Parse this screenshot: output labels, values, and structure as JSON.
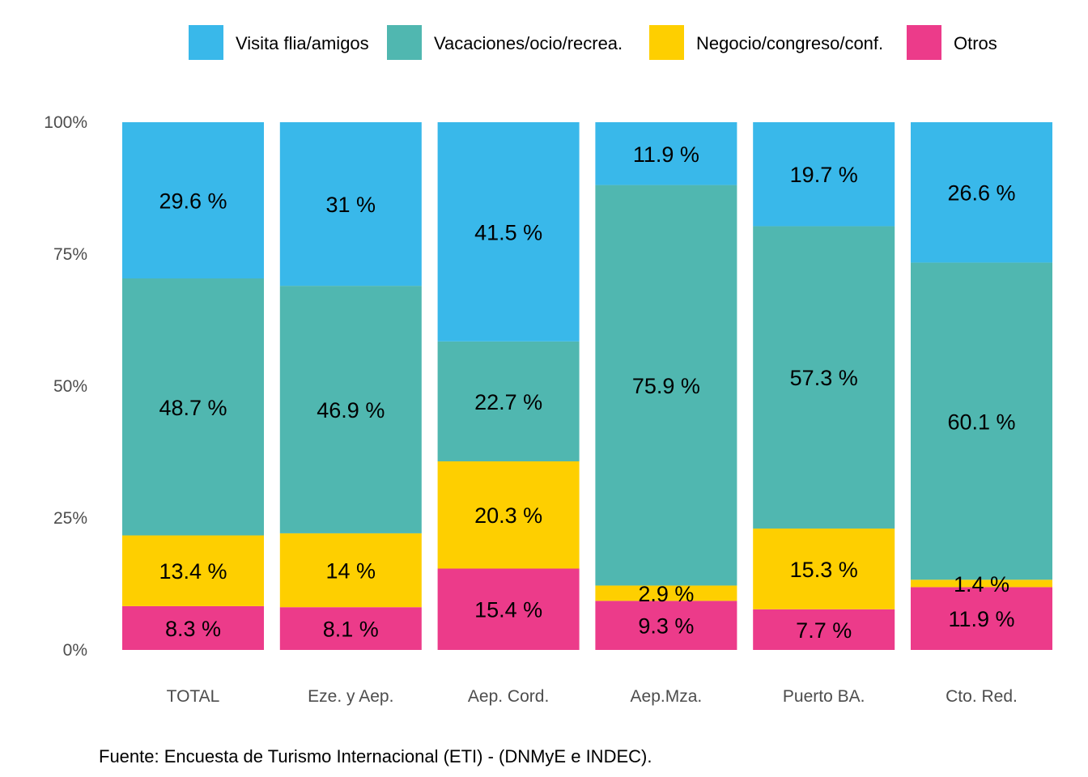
{
  "chart_data": {
    "type": "bar",
    "stacked": true,
    "normalized": true,
    "categories": [
      "TOTAL",
      "Eze. y Aep.",
      "Aep. Cord.",
      "Aep.Mza.",
      "Puerto BA.",
      "Cto. Red."
    ],
    "series": [
      {
        "name": "Visita flia/amigos",
        "color": "#39b8ea",
        "values": [
          29.6,
          31,
          41.5,
          11.9,
          19.7,
          26.6
        ]
      },
      {
        "name": "Vacaciones/ocio/recrea.",
        "color": "#50b7b0",
        "values": [
          48.7,
          46.9,
          22.7,
          75.9,
          57.3,
          60.1
        ]
      },
      {
        "name": "Negocio/congreso/conf.",
        "color": "#fecf00",
        "values": [
          13.4,
          14,
          20.3,
          2.9,
          15.3,
          1.4
        ]
      },
      {
        "name": "Otros",
        "color": "#ec3b8a",
        "values": [
          8.3,
          8.1,
          15.4,
          9.3,
          7.7,
          11.9
        ]
      }
    ],
    "ylim": [
      0,
      100
    ],
    "yticks": [
      "0%",
      "25%",
      "50%",
      "75%",
      "100%"
    ],
    "ytick_values": [
      0,
      25,
      50,
      75,
      100
    ],
    "xlabel": "",
    "ylabel": "",
    "legend_position": "top",
    "grid": false,
    "label_suffix": " %",
    "source": "Fuente: Encuesta de Turismo Internacional (ETI) - (DNMyE e INDEC)."
  }
}
